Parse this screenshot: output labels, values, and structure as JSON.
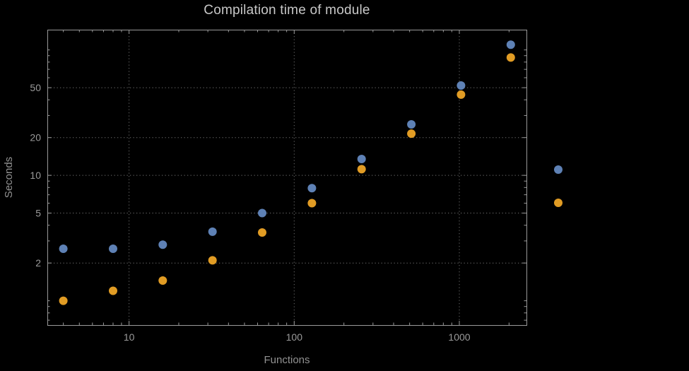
{
  "window": {
    "background": "#000000"
  },
  "chart_data": {
    "type": "scatter",
    "title": "Compilation time of module",
    "xlabel": "Functions",
    "ylabel": "Seconds",
    "xscale": "log",
    "yscale": "log",
    "xlim": [
      3.2,
      2550
    ],
    "ylim": [
      0.64,
      145
    ],
    "grid": true,
    "x": [
      4,
      8,
      16,
      32,
      64,
      128,
      256,
      512,
      1024,
      2048
    ],
    "series": [
      {
        "name": "series-blue",
        "color": "#5e81b5",
        "values": [
          2.6,
          2.6,
          2.8,
          3.55,
          5.0,
          7.9,
          13.5,
          25.5,
          52,
          110
        ]
      },
      {
        "name": "series-orange",
        "color": "#e19c24",
        "values": [
          1.0,
          1.2,
          1.45,
          2.1,
          3.5,
          6.0,
          11.2,
          21.5,
          44,
          87
        ]
      }
    ],
    "x_ticks": [
      {
        "value": 10,
        "label": "10"
      },
      {
        "value": 100,
        "label": "100"
      },
      {
        "value": 1000,
        "label": "1000"
      }
    ],
    "y_ticks": [
      {
        "value": 2,
        "label": "2"
      },
      {
        "value": 5,
        "label": "5"
      },
      {
        "value": 10,
        "label": "10"
      },
      {
        "value": 20,
        "label": "20"
      },
      {
        "value": 50,
        "label": "50"
      }
    ],
    "x_minor_ticks": [
      4,
      5,
      6,
      7,
      8,
      9,
      20,
      30,
      40,
      50,
      60,
      70,
      80,
      90,
      200,
      300,
      400,
      500,
      600,
      700,
      800,
      900,
      2000
    ],
    "y_minor_ticks": [
      0.7,
      0.8,
      0.9,
      1,
      3,
      4,
      6,
      7,
      8,
      9,
      30,
      40,
      60,
      70,
      80,
      90,
      100
    ],
    "gridline_x": [
      10,
      100,
      1000
    ],
    "gridline_y": [
      2,
      5,
      10,
      20,
      50
    ],
    "legend": {
      "position": "outside-right",
      "markers": [
        {
          "series": "series-blue",
          "color": "#5e81b5"
        },
        {
          "series": "series-orange",
          "color": "#e19c24"
        }
      ]
    }
  },
  "style": {
    "background": "#000000",
    "frame_color": "#9a9a9a",
    "grid_color": "#6c6c6c",
    "title_color": "#c8c8c8",
    "tick_label_color": "#9a9a9a",
    "axis_label_color": "#929292",
    "marker_radius": 6
  }
}
